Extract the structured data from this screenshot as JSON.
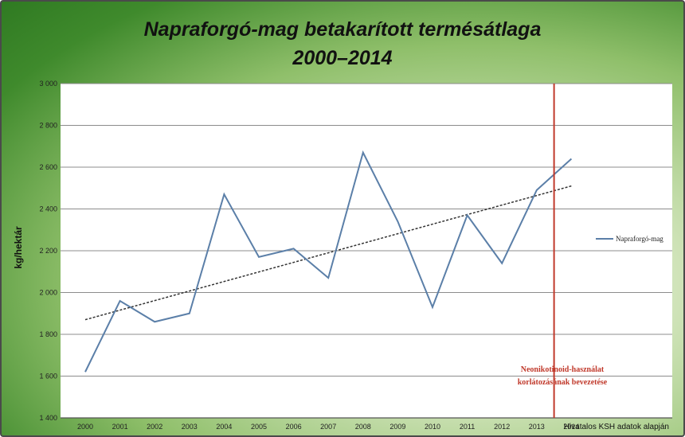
{
  "chart_data": {
    "type": "line",
    "title_line1": "Napraforgó-mag betakarított termésátlaga",
    "title_line2": "2000–2014",
    "ylabel": "kg/hektár",
    "xlabel": "",
    "ylim": [
      1400,
      3000
    ],
    "yticks": [
      1400,
      1600,
      1800,
      2000,
      2200,
      2400,
      2600,
      2800,
      3000
    ],
    "ytick_labels": [
      "1 400",
      "1 600",
      "1 800",
      "2 000",
      "2 200",
      "2 400",
      "2 600",
      "2 800",
      "3 000"
    ],
    "categories": [
      "2000",
      "2001",
      "2002",
      "2003",
      "2004",
      "2005",
      "2006",
      "2007",
      "2008",
      "2009",
      "2010",
      "2011",
      "2012",
      "2013",
      "2014"
    ],
    "series": [
      {
        "name": "Napraforgó-mag",
        "values": [
          1620,
          1960,
          1860,
          1900,
          2470,
          2170,
          2210,
          2070,
          2670,
          2340,
          1930,
          2370,
          2140,
          2490,
          2640
        ]
      }
    ],
    "trendline": {
      "start": 1870,
      "end": 2510,
      "style": "dashed"
    },
    "marker_line": {
      "between": [
        "2013",
        "2014"
      ],
      "color": "#c0392b"
    },
    "annotation_lines": [
      "Neonikotinoid-használat",
      "korlátozásának bevezetése"
    ],
    "grid": true,
    "legend_position": "right",
    "colors": {
      "series": "#5b7fa8",
      "trend": "#333333",
      "marker": "#c0392b"
    }
  },
  "source_note": "Hivatalos KSH adatok alapján"
}
